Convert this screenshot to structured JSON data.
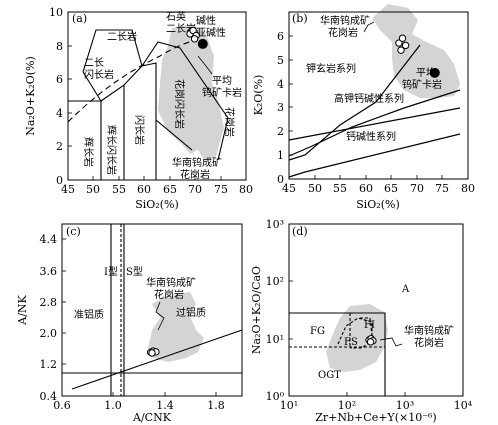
{
  "panels": {
    "a": {
      "label": "(a)",
      "xlabel": "SiO₂(%)",
      "ylabel": "Na₂O+K₂O(%)",
      "xticks": [
        "45",
        "50",
        "55",
        "60",
        "65",
        "70",
        "75",
        "80"
      ],
      "yticks": [
        "0",
        "2",
        "4",
        "6",
        "8",
        "10"
      ],
      "fields": {
        "f1": "二长岩",
        "f2a": "二长",
        "f2b": "闪长岩",
        "f3": "石英",
        "f4": "二长岩",
        "f5": "碱性",
        "f6": "亚碱性",
        "f7": "辉长岩",
        "f8": "辉长闪长岩",
        "f9": "闪长岩",
        "f10": "花岗闪长岩",
        "f11": "花岗岩"
      },
      "avg_label": [
        "平均",
        "钨矿卡岩"
      ],
      "group_label": [
        "华南钨成矿",
        "花岗岩"
      ]
    },
    "b": {
      "label": "(b)",
      "xlabel": "SiO₂(%)",
      "ylabel": "K₂O(%)",
      "xticks": [
        "45",
        "50",
        "55",
        "60",
        "65",
        "70",
        "75",
        "80"
      ],
      "yticks": [
        "0",
        "1",
        "2",
        "3",
        "4",
        "5",
        "6"
      ],
      "series_labels": {
        "shoshonite": "钾玄岩系列",
        "high_k": "高钾钙碱性系列",
        "calc_alkaline": "钙碱性系列"
      },
      "avg_label": [
        "平均",
        "钨矿卡岩"
      ],
      "group_label": [
        "华南钨成矿",
        "花岗岩"
      ]
    },
    "c": {
      "label": "(c)",
      "xlabel": "A/CNK",
      "ylabel": "A/NK",
      "xticks": [
        "0.6",
        "1.0",
        "1.4",
        "1.8"
      ],
      "yticks": [
        "0.4",
        "1.2",
        "2.0",
        "2.8",
        "3.6",
        "4.4"
      ],
      "i_type": "I型",
      "s_type": "S型",
      "metaluminous": "准铝质",
      "peraluminous": "过铝质",
      "group_label": [
        "华南钨成矿",
        "花岗岩"
      ]
    },
    "d": {
      "label": "(d)",
      "xlabel": "Zr+Nb+Ce+Y(×10⁻⁶)",
      "ylabel": "Na₂O+K₂O/CaO",
      "xticks": [
        "10¹",
        "10²",
        "10³",
        "10⁴"
      ],
      "yticks": [
        "10⁰",
        "10¹",
        "10²",
        "10³"
      ],
      "fields": {
        "A": "A",
        "FG": "FG",
        "FI": "FI",
        "FS": "FS",
        "OGT": "OGT"
      },
      "group_label": [
        "华南钨成矿",
        "花岗岩"
      ]
    }
  },
  "chart_data": [
    {
      "panel": "a",
      "type": "scatter",
      "xlim": [
        45,
        80
      ],
      "ylim": [
        0,
        10
      ],
      "samples": [
        [
          69,
          8.7
        ],
        [
          69.6,
          8.9
        ],
        [
          70.2,
          8.6
        ],
        [
          69.9,
          8.4
        ]
      ],
      "average": [
        71.5,
        8.1
      ]
    },
    {
      "panel": "b",
      "type": "scatter",
      "xlim": [
        45,
        80
      ],
      "ylim": [
        0,
        7
      ],
      "samples": [
        [
          66.5,
          5.7
        ],
        [
          67.2,
          5.9
        ],
        [
          67.8,
          5.6
        ],
        [
          66.9,
          5.4
        ]
      ],
      "average": [
        73.5,
        4.45
      ]
    },
    {
      "panel": "c",
      "type": "scatter",
      "xlim": [
        0.6,
        2.0
      ],
      "ylim": [
        0.4,
        4.8
      ],
      "samples": [
        [
          1.29,
          1.52
        ],
        [
          1.31,
          1.55
        ],
        [
          1.33,
          1.53
        ],
        [
          1.3,
          1.5
        ]
      ]
    },
    {
      "panel": "d",
      "type": "scatter",
      "log_scale": true,
      "xlim": [
        10,
        10000
      ],
      "ylim": [
        1,
        1000
      ],
      "samples": [
        [
          240,
          9.5
        ],
        [
          260,
          10
        ],
        [
          280,
          9.2
        ],
        [
          255,
          8.8
        ]
      ]
    }
  ]
}
